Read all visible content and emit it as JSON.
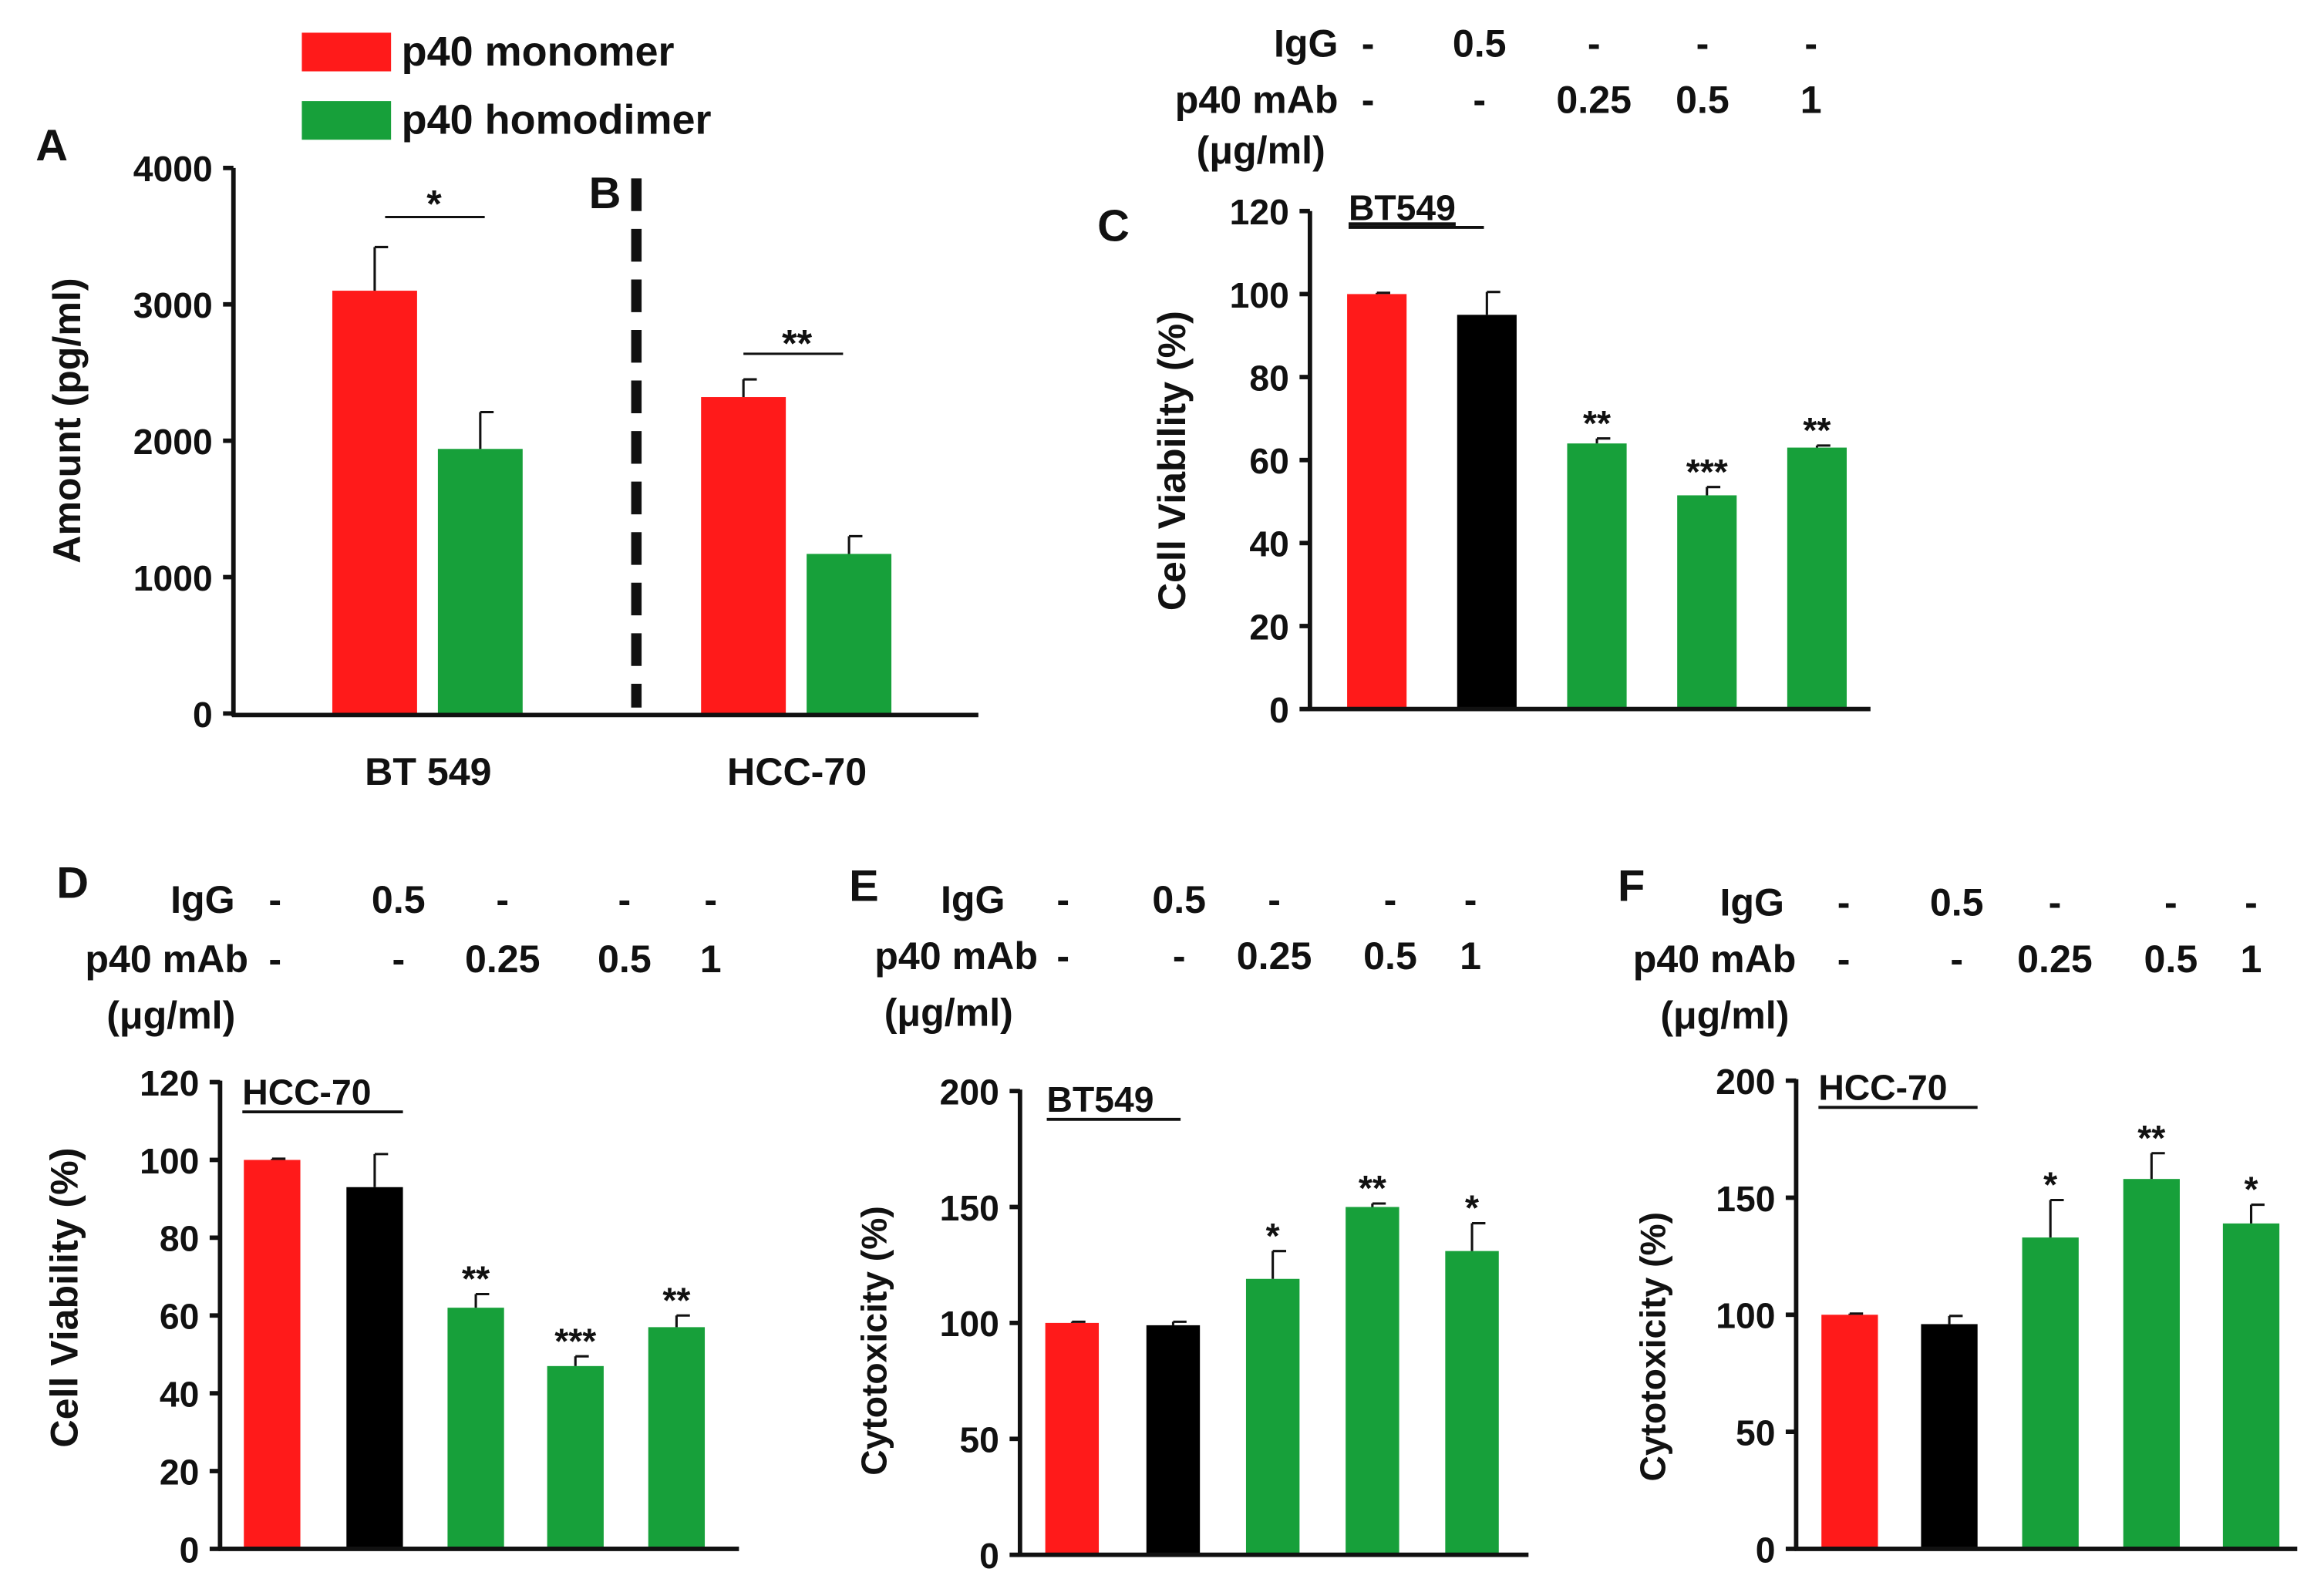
{
  "colors": {
    "red": "#ff1a1a",
    "green": "#17a03a",
    "black": "#000000",
    "axis": "#111111"
  },
  "legend": [
    {
      "label": "p40 monomer",
      "color": "red"
    },
    {
      "label": "p40 homodimer",
      "color": "green"
    }
  ],
  "condition_rows": {
    "igg_label": "IgG",
    "mab_label": "p40 mAb",
    "unit_label": "(μg/ml)",
    "igg_values": [
      "-",
      "0.5",
      "-",
      "-",
      "-"
    ],
    "mab_values": [
      "-",
      "-",
      "0.25",
      "0.5",
      "1"
    ]
  },
  "chart_data": [
    {
      "panel": "A",
      "panel_b_label": "B",
      "type": "bar",
      "title": "",
      "ylabel": "Amount (pg/ml)",
      "ylim": [
        0,
        4000
      ],
      "yticks": [
        0,
        1000,
        2000,
        3000,
        4000
      ],
      "categories": [
        "BT 549",
        "HCC-70"
      ],
      "series": [
        {
          "name": "p40 monomer",
          "color": "red",
          "values": [
            3100,
            2320
          ],
          "errors": [
            320,
            130
          ]
        },
        {
          "name": "p40 homodimer",
          "color": "green",
          "values": [
            1940,
            1170
          ],
          "errors": [
            270,
            130
          ]
        }
      ],
      "significance": [
        "*",
        "**"
      ]
    },
    {
      "panel": "C",
      "type": "bar",
      "title": "BT549",
      "ylabel": "Cell Viability (%)",
      "ylim": [
        0,
        120
      ],
      "yticks": [
        0,
        20,
        40,
        60,
        80,
        100,
        120
      ],
      "values": [
        100,
        95,
        64,
        51.5,
        63
      ],
      "errors": [
        0.3,
        5.5,
        1.2,
        2,
        0.5
      ],
      "colors": [
        "red",
        "black",
        "green",
        "green",
        "green"
      ],
      "significance": [
        "",
        "",
        "**",
        "***",
        "**"
      ]
    },
    {
      "panel": "D",
      "type": "bar",
      "title": "HCC-70",
      "ylabel": "Cell Viability (%)",
      "ylim": [
        0,
        120
      ],
      "yticks": [
        0,
        20,
        40,
        60,
        80,
        100,
        120
      ],
      "values": [
        100,
        93,
        62,
        47,
        57
      ],
      "errors": [
        0.3,
        8.5,
        3.5,
        2.5,
        3
      ],
      "colors": [
        "red",
        "black",
        "green",
        "green",
        "green"
      ],
      "significance": [
        "",
        "",
        "**",
        "***",
        "**"
      ]
    },
    {
      "panel": "E",
      "type": "bar",
      "title": "BT549",
      "ylabel": "Cytotoxicity (%)",
      "ylim": [
        0,
        200
      ],
      "yticks": [
        0,
        50,
        100,
        150,
        200
      ],
      "values": [
        100,
        99,
        119,
        150,
        131
      ],
      "errors": [
        0.5,
        1.5,
        12,
        1.5,
        12
      ],
      "colors": [
        "red",
        "black",
        "green",
        "green",
        "green"
      ],
      "significance": [
        "",
        "",
        "*",
        "**",
        "*"
      ]
    },
    {
      "panel": "F",
      "type": "bar",
      "title": "HCC-70",
      "ylabel": "Cytotoxicity (%)",
      "ylim": [
        0,
        200
      ],
      "yticks": [
        0,
        50,
        100,
        150,
        200
      ],
      "values": [
        100,
        96,
        133,
        158,
        139
      ],
      "errors": [
        0.5,
        3.5,
        16,
        11,
        8
      ],
      "colors": [
        "red",
        "black",
        "green",
        "green",
        "green"
      ],
      "significance": [
        "",
        "",
        "*",
        "**",
        "*"
      ]
    }
  ]
}
